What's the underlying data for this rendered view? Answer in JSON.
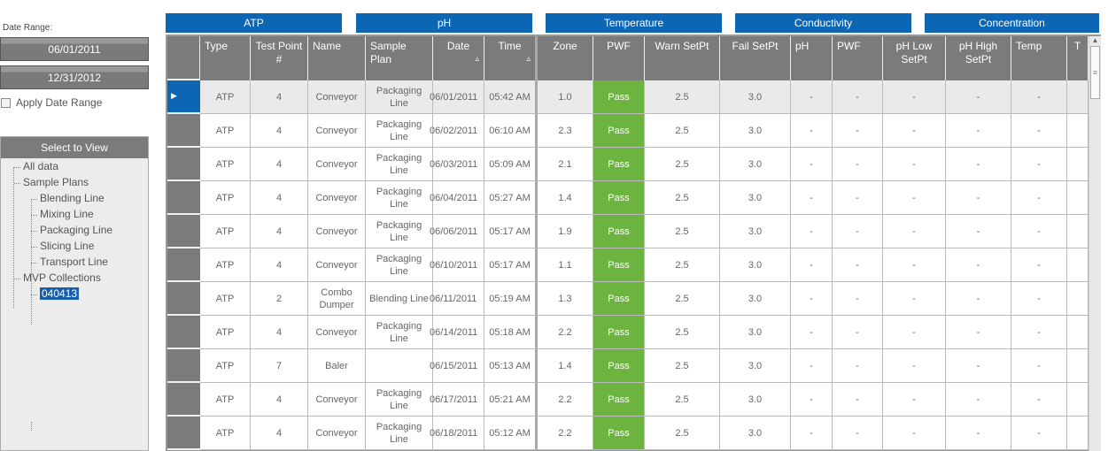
{
  "sidebar": {
    "date_range_label": "Date Range:",
    "start_date": "06/01/2011",
    "end_date": "12/31/2012",
    "apply_label": "Apply Date Range",
    "apply_checked": false,
    "tree_title": "Select to View",
    "tree": [
      {
        "label": "All data",
        "level": 0
      },
      {
        "label": "Sample Plans",
        "level": 0
      },
      {
        "label": "Blending Line",
        "level": 1
      },
      {
        "label": "Mixing Line",
        "level": 1
      },
      {
        "label": "Packaging Line",
        "level": 1
      },
      {
        "label": "Slicing Line",
        "level": 1
      },
      {
        "label": "Transport Line",
        "level": 1
      },
      {
        "label": "MVP Collections",
        "level": 0
      },
      {
        "label": "040413",
        "level": 1,
        "selected": true
      }
    ]
  },
  "groups": [
    "ATP",
    "pH",
    "Temperature",
    "Conductivity",
    "Concentration"
  ],
  "columns": [
    "Type",
    "Test Point #",
    "Name",
    "Sample Plan",
    "Date",
    "Time",
    "Zone",
    "PWF",
    "Warn SetPt",
    "Fail SetPt",
    "pH",
    "PWF",
    "pH Low SetPt",
    "pH High SetPt",
    "Temp",
    "T"
  ],
  "sort_icon": "triangle-up",
  "rows": [
    [
      "ATP",
      "4",
      "Conveyor",
      "Packaging Line",
      "06/01/2011",
      "05:42 AM",
      "1.0",
      "Pass",
      "2.5",
      "3.0",
      "-",
      "-",
      "-",
      "-",
      "-",
      ""
    ],
    [
      "ATP",
      "4",
      "Conveyor",
      "Packaging Line",
      "06/02/2011",
      "06:10 AM",
      "2.3",
      "Pass",
      "2.5",
      "3.0",
      "-",
      "-",
      "-",
      "-",
      "-",
      ""
    ],
    [
      "ATP",
      "4",
      "Conveyor",
      "Packaging Line",
      "06/03/2011",
      "05:09 AM",
      "2.1",
      "Pass",
      "2.5",
      "3.0",
      "-",
      "-",
      "-",
      "-",
      "-",
      ""
    ],
    [
      "ATP",
      "4",
      "Conveyor",
      "Packaging Line",
      "06/04/2011",
      "05:27 AM",
      "1.4",
      "Pass",
      "2.5",
      "3.0",
      "-",
      "-",
      "-",
      "-",
      "-",
      ""
    ],
    [
      "ATP",
      "4",
      "Conveyor",
      "Packaging Line",
      "06/06/2011",
      "05:17 AM",
      "1.9",
      "Pass",
      "2.5",
      "3.0",
      "-",
      "-",
      "-",
      "-",
      "-",
      ""
    ],
    [
      "ATP",
      "4",
      "Conveyor",
      "Packaging Line",
      "06/10/2011",
      "05:17 AM",
      "1.1",
      "Pass",
      "2.5",
      "3.0",
      "-",
      "-",
      "-",
      "-",
      "-",
      ""
    ],
    [
      "ATP",
      "2",
      "Combo Dumper",
      "Blending Line",
      "06/11/2011",
      "05:19 AM",
      "1.3",
      "Pass",
      "2.5",
      "3.0",
      "-",
      "-",
      "-",
      "-",
      "-",
      ""
    ],
    [
      "ATP",
      "4",
      "Conveyor",
      "Packaging Line",
      "06/14/2011",
      "05:18 AM",
      "2.2",
      "Pass",
      "2.5",
      "3.0",
      "-",
      "-",
      "-",
      "-",
      "-",
      ""
    ],
    [
      "ATP",
      "7",
      "Baler",
      "",
      "06/15/2011",
      "05:13 AM",
      "1.4",
      "Pass",
      "2.5",
      "3.0",
      "-",
      "-",
      "-",
      "-",
      "-",
      ""
    ],
    [
      "ATP",
      "4",
      "Conveyor",
      "Packaging Line",
      "06/17/2011",
      "05:21 AM",
      "2.2",
      "Pass",
      "2.5",
      "3.0",
      "-",
      "-",
      "-",
      "-",
      "-",
      ""
    ],
    [
      "ATP",
      "4",
      "Conveyor",
      "Packaging Line",
      "06/18/2011",
      "05:12 AM",
      "2.2",
      "Pass",
      "2.5",
      "3.0",
      "-",
      "-",
      "-",
      "-",
      "-",
      ""
    ]
  ],
  "colors": {
    "accent": "#0d66b3",
    "pass": "#6db33f",
    "header": "#7b7b7b"
  }
}
